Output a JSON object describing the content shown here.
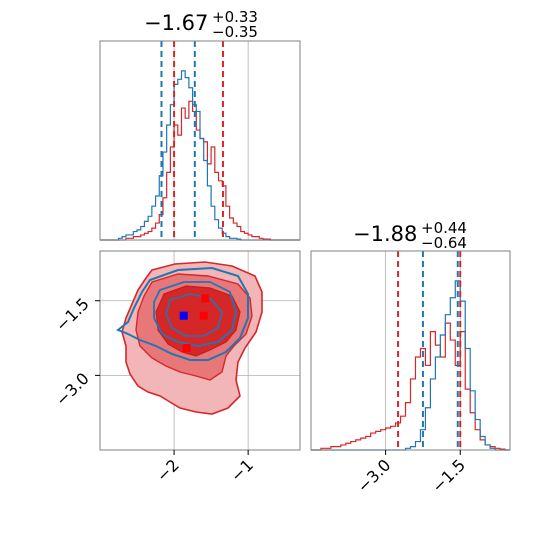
{
  "chart_data": {
    "type": "corner",
    "colors": {
      "series_a": "#1f77b4",
      "series_b": "#d62728",
      "fill_light": "#f3b6b8",
      "fill_mid": "#e8777a",
      "fill_dark": "#d62728",
      "frame": "#808080",
      "grid": "#b0b0b0"
    },
    "parameters": [
      {
        "median": "−1.67",
        "plus": "+0.33",
        "minus": "−0.35",
        "range": [
          -3.0,
          -0.3
        ],
        "ticks": [
          -2,
          -1
        ],
        "tick_labels": [
          "−2",
          "−1"
        ],
        "quantiles_series_a": [
          -2.17,
          -1.72
        ],
        "quantiles_series_b": [
          -2.0,
          -1.34
        ]
      },
      {
        "median": "−1.88",
        "plus": "+0.44",
        "minus": "−0.64",
        "range": [
          -4.5,
          -0.5
        ],
        "ticks": [
          -3.0,
          -1.5
        ],
        "tick_labels": [
          "−3.0",
          "−1.5"
        ],
        "quantiles_series_a": [
          -2.25,
          -1.55
        ],
        "quantiles_series_b": [
          -2.75,
          -1.5
        ]
      }
    ],
    "hist_bins": [
      -3.0,
      -2.95,
      -2.9,
      -2.85,
      -2.8,
      -2.75,
      -2.7,
      -2.65,
      -2.6,
      -2.55,
      -2.5,
      -2.45,
      -2.4,
      -2.35,
      -2.3,
      -2.25,
      -2.2,
      -2.15,
      -2.1,
      -2.05,
      -2.0,
      -1.95,
      -1.9,
      -1.85,
      -1.8,
      -1.75,
      -1.7,
      -1.65,
      -1.6,
      -1.55,
      -1.5,
      -1.45,
      -1.4,
      -1.35,
      -1.3,
      -1.25,
      -1.2,
      -1.15,
      -1.1,
      -1.05,
      -1.0,
      -0.95,
      -0.9,
      -0.85,
      -0.8,
      -0.75,
      -0.7,
      -0.65,
      -0.6,
      -0.55,
      -0.5,
      -0.45,
      -0.4,
      -0.35,
      -0.3
    ],
    "hist_x_series_a": [
      0,
      0,
      0,
      0,
      0,
      0.01,
      0.02,
      0.03,
      0.03,
      0.05,
      0.06,
      0.08,
      0.11,
      0.14,
      0.2,
      0.26,
      0.38,
      0.52,
      0.68,
      0.8,
      0.92,
      0.95,
      1.0,
      0.96,
      0.9,
      0.8,
      0.76,
      0.6,
      0.47,
      0.32,
      0.2,
      0.12,
      0.07,
      0.04,
      0.02,
      0.01,
      0.01,
      0.005,
      0,
      0,
      0,
      0,
      0,
      0,
      0,
      0,
      0,
      0,
      0,
      0,
      0,
      0,
      0,
      0
    ],
    "hist_x_series_b": [
      0,
      0,
      0,
      0,
      0,
      0,
      0,
      0.01,
      0.01,
      0.02,
      0.02,
      0.03,
      0.04,
      0.05,
      0.07,
      0.1,
      0.15,
      0.25,
      0.4,
      0.55,
      0.68,
      0.62,
      0.78,
      0.72,
      0.82,
      0.76,
      0.65,
      0.6,
      0.58,
      0.45,
      0.55,
      0.4,
      0.35,
      0.32,
      0.2,
      0.13,
      0.1,
      0.08,
      0.05,
      0.04,
      0.03,
      0.02,
      0.02,
      0.01,
      0.005,
      0.005,
      0,
      0,
      0,
      0,
      0,
      0,
      0,
      0
    ],
    "hist_y_bins": [
      -4.5,
      -4.4,
      -4.3,
      -4.2,
      -4.1,
      -4.0,
      -3.9,
      -3.8,
      -3.7,
      -3.6,
      -3.5,
      -3.4,
      -3.3,
      -3.2,
      -3.1,
      -3.0,
      -2.9,
      -2.8,
      -2.7,
      -2.6,
      -2.5,
      -2.4,
      -2.3,
      -2.2,
      -2.1,
      -2.0,
      -1.9,
      -1.8,
      -1.7,
      -1.6,
      -1.5,
      -1.4,
      -1.3,
      -1.2,
      -1.1,
      -1.0,
      -0.9,
      -0.8,
      -0.7,
      -0.6,
      -0.5
    ],
    "hist_y_series_a": [
      0,
      0,
      0,
      0,
      0,
      0,
      0,
      0,
      0,
      0,
      0,
      0,
      0,
      0,
      0,
      0,
      0,
      0,
      0,
      0.01,
      0.02,
      0.05,
      0.12,
      0.25,
      0.42,
      0.55,
      0.68,
      0.8,
      0.9,
      1.0,
      0.88,
      0.6,
      0.35,
      0.18,
      0.08,
      0.03,
      0.01,
      0,
      0,
      0
    ],
    "hist_y_series_b": [
      0,
      0,
      0.01,
      0.01,
      0.02,
      0.02,
      0.03,
      0.04,
      0.05,
      0.06,
      0.07,
      0.08,
      0.1,
      0.11,
      0.12,
      0.13,
      0.14,
      0.16,
      0.2,
      0.28,
      0.42,
      0.55,
      0.6,
      0.5,
      0.7,
      0.62,
      0.55,
      0.75,
      0.65,
      0.5,
      0.7,
      0.36,
      0.22,
      0.12,
      0.06,
      0.03,
      0.02,
      0.01,
      0.005,
      0
    ],
    "markers": [
      {
        "series": "series_a",
        "x": -1.87,
        "y": -1.8
      },
      {
        "series": "series_b",
        "x": -1.6,
        "y": -1.8
      },
      {
        "series": "series_b",
        "x": -1.58,
        "y": -1.45
      },
      {
        "series": "series_b",
        "x": -1.83,
        "y": -2.45
      }
    ]
  }
}
